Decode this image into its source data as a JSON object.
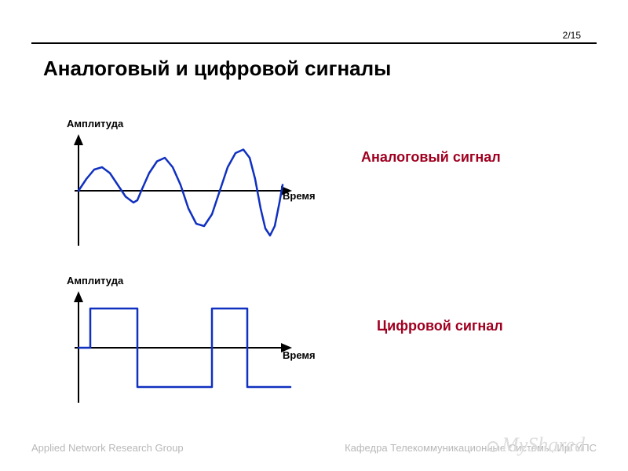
{
  "page_number": "2/15",
  "title": "Аналоговый и цифровой сигналы",
  "footer_left": "Applied Network Research Group",
  "footer_right": "Кафедра Телекоммуникационные Системы, ИрГУПС",
  "watermark": "MyShared",
  "analog": {
    "type": "line",
    "y_label": "Амплитуда",
    "x_label": "Время",
    "signal_label": "Аналоговый сигнал",
    "signal_label_color": "#a00020",
    "signal_label_fontsize": 18,
    "label_fontsize": 13,
    "line_color": "#1030c0",
    "line_width": 2.5,
    "axis_color": "#000000",
    "axis_width": 2,
    "background_color": "#ffffff",
    "xlim": [
      0,
      260
    ],
    "ylim": [
      -40,
      40
    ],
    "points": [
      [
        0,
        0
      ],
      [
        10,
        10
      ],
      [
        20,
        18
      ],
      [
        30,
        20
      ],
      [
        40,
        15
      ],
      [
        50,
        5
      ],
      [
        60,
        -5
      ],
      [
        70,
        -10
      ],
      [
        75,
        -8
      ],
      [
        80,
        0
      ],
      [
        90,
        15
      ],
      [
        100,
        25
      ],
      [
        110,
        28
      ],
      [
        120,
        20
      ],
      [
        130,
        5
      ],
      [
        140,
        -15
      ],
      [
        150,
        -28
      ],
      [
        160,
        -30
      ],
      [
        170,
        -20
      ],
      [
        180,
        0
      ],
      [
        190,
        20
      ],
      [
        200,
        32
      ],
      [
        210,
        35
      ],
      [
        218,
        28
      ],
      [
        225,
        10
      ],
      [
        232,
        -15
      ],
      [
        238,
        -32
      ],
      [
        244,
        -38
      ],
      [
        250,
        -30
      ],
      [
        256,
        -10
      ],
      [
        260,
        5
      ]
    ]
  },
  "digital": {
    "type": "step",
    "y_label": "Амплитуда",
    "x_label": "Время",
    "signal_label": "Цифровой сигнал",
    "signal_label_color": "#a00020",
    "signal_label_fontsize": 18,
    "label_fontsize": 13,
    "line_color": "#1030c0",
    "line_width": 2.5,
    "axis_color": "#000000",
    "axis_width": 2,
    "background_color": "#ffffff",
    "xlim": [
      0,
      260
    ],
    "ylim": [
      -30,
      30
    ],
    "points": [
      [
        0,
        0
      ],
      [
        15,
        0
      ],
      [
        15,
        25
      ],
      [
        75,
        25
      ],
      [
        75,
        -25
      ],
      [
        170,
        -25
      ],
      [
        170,
        25
      ],
      [
        215,
        25
      ],
      [
        215,
        -25
      ],
      [
        270,
        -25
      ]
    ]
  }
}
